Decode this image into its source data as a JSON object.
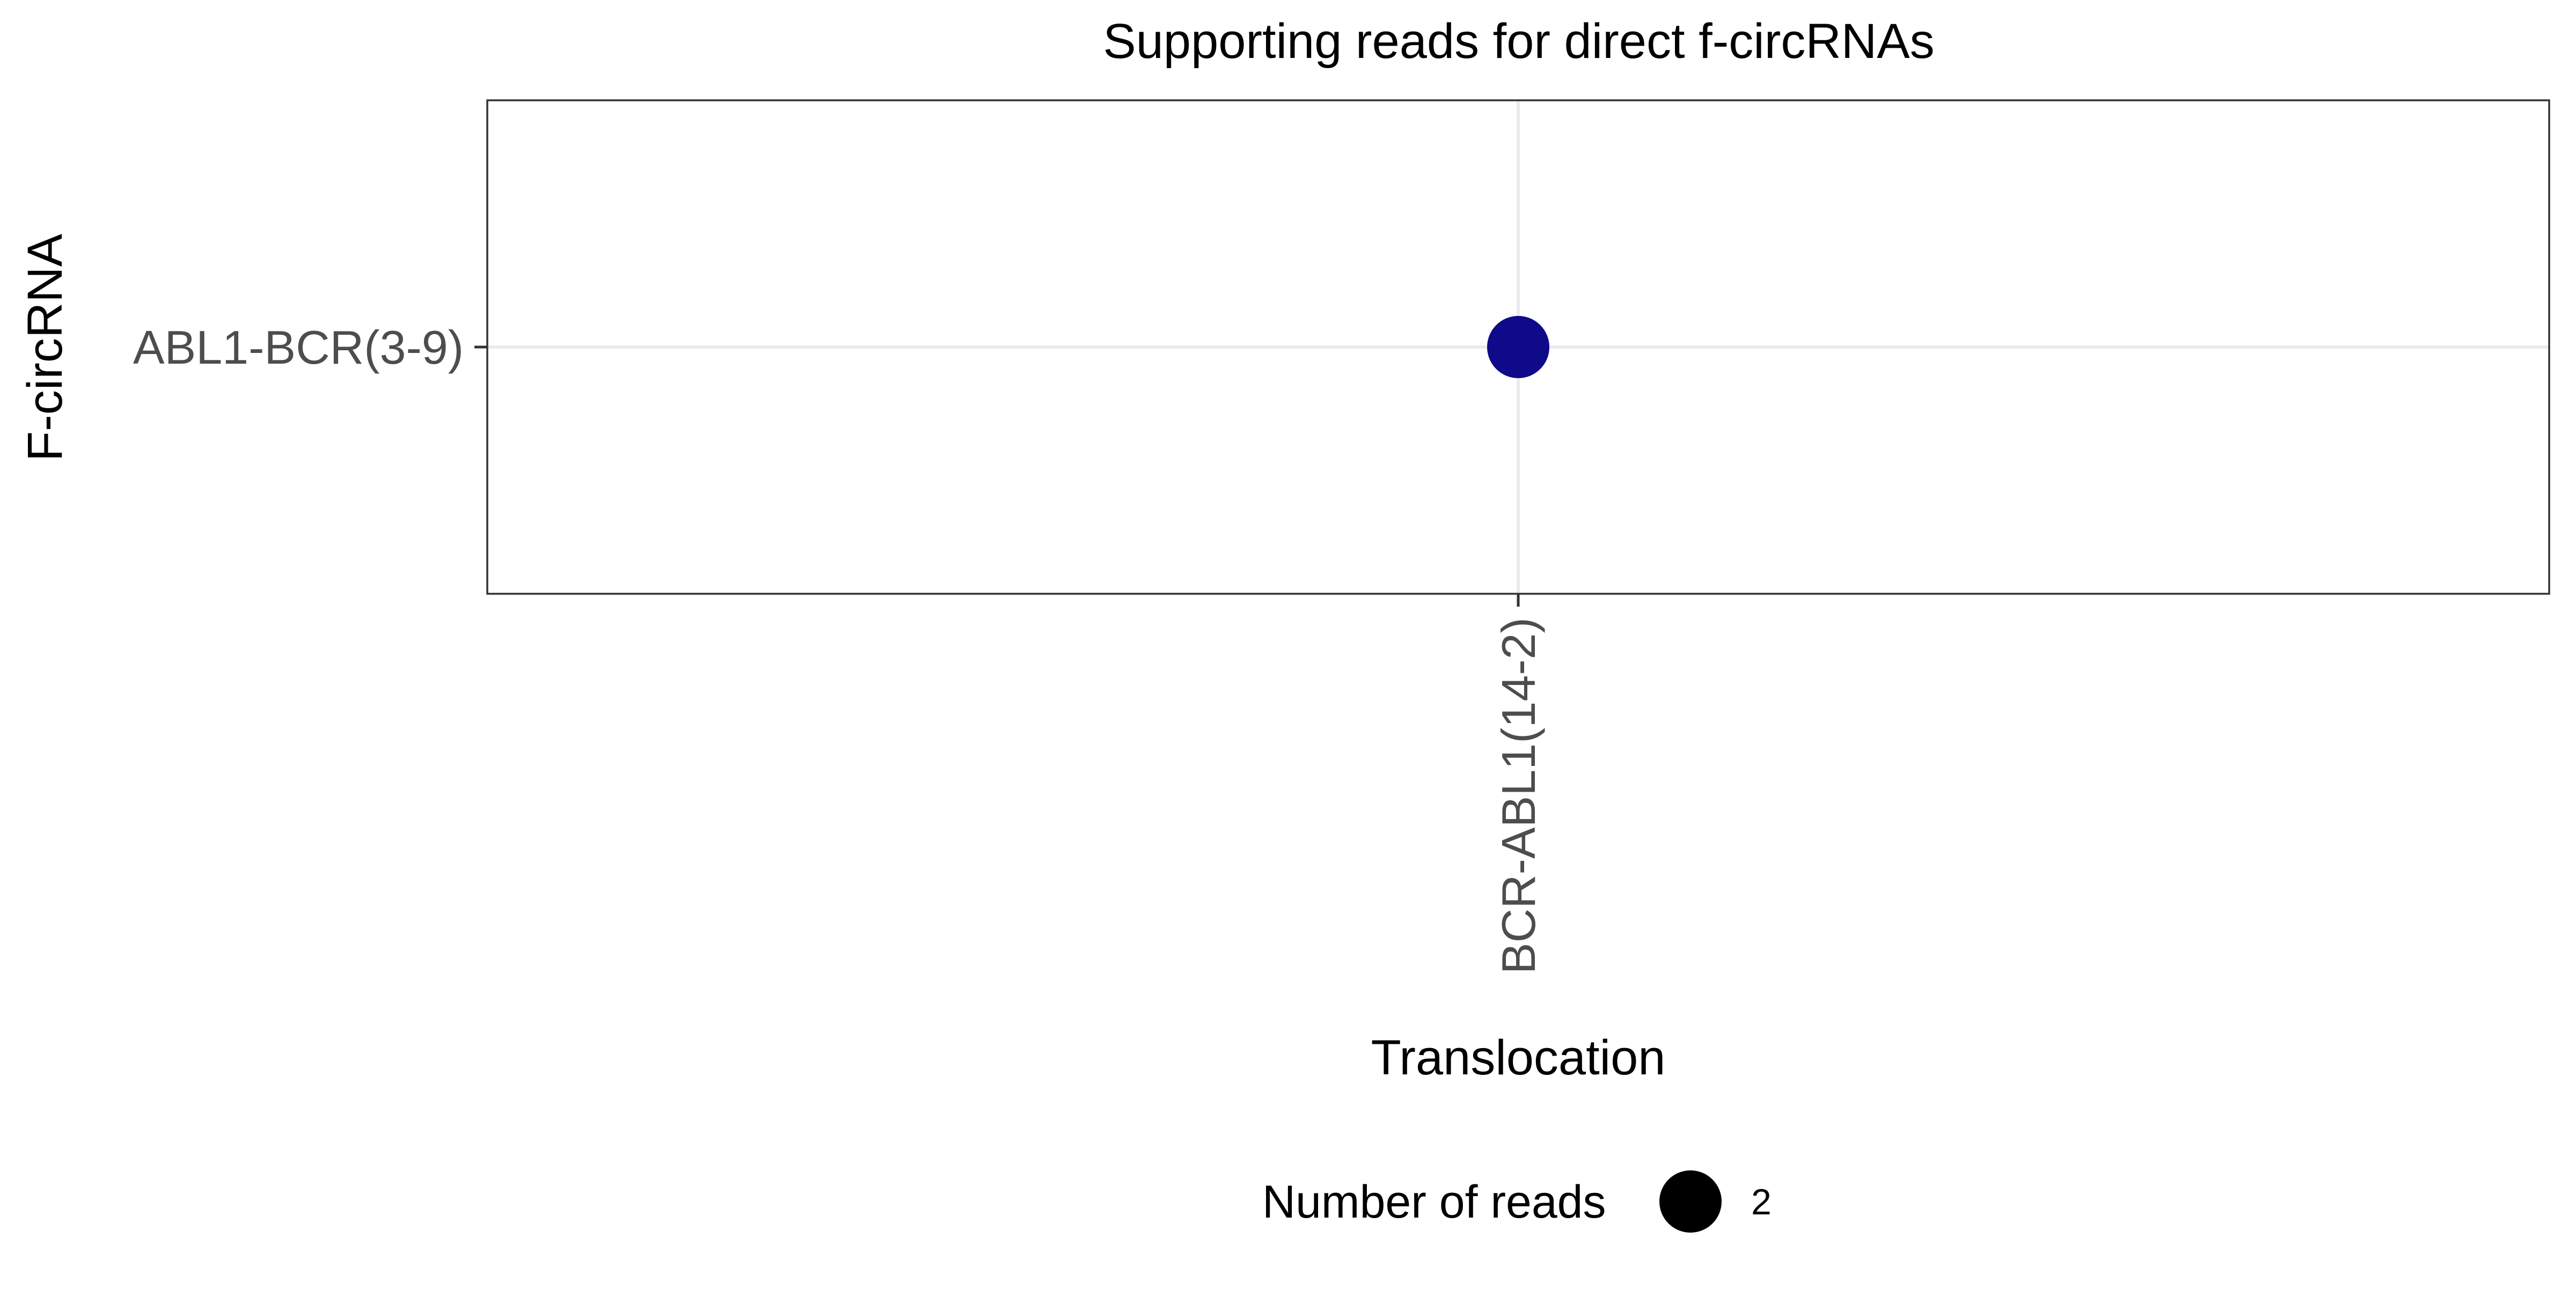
{
  "chart_data": {
    "type": "scatter",
    "title": "Supporting reads for direct f-circRNAs",
    "xlabel": "Translocation",
    "ylabel": "F-circRNA",
    "x_categories": [
      "BCR-ABL1(14-2)"
    ],
    "y_categories": [
      "ABL1-BCR(3-9)"
    ],
    "points": [
      {
        "x": "BCR-ABL1(14-2)",
        "y": "ABL1-BCR(3-9)",
        "reads": 2
      }
    ],
    "point_color": "#0f0a8a",
    "grid": true,
    "legend": {
      "title": "Number of reads",
      "position": "bottom",
      "entries": [
        {
          "label": "2",
          "size_value": 2
        }
      ]
    }
  }
}
